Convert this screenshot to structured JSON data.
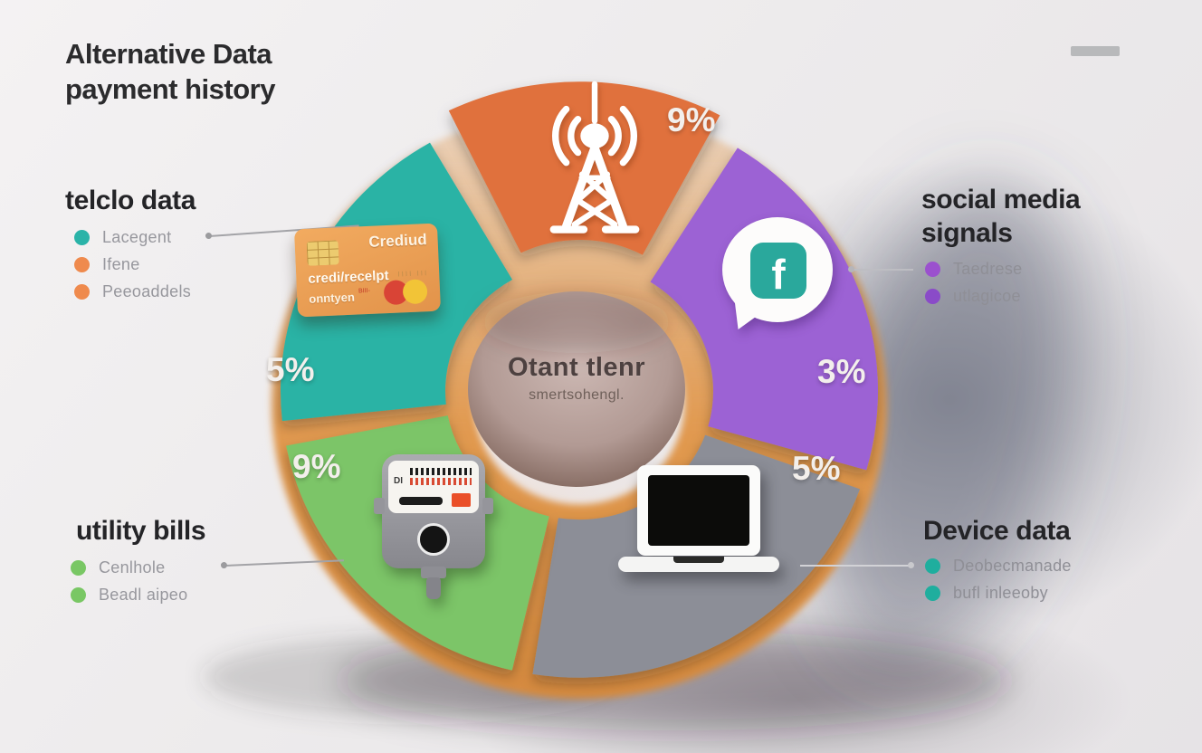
{
  "title": {
    "line1": "Alternative Data",
    "line2": "payment history"
  },
  "decoration": {
    "top_right_dash_color": "#B8B9BB"
  },
  "chart_data": {
    "type": "pie",
    "style": "3d-donut-exploded",
    "title": "Alternative Data payment history",
    "legend_position": "sides",
    "center_label": {
      "title": "Otant tlenr",
      "subtitle": "smertsohengl."
    },
    "segments": [
      {
        "name": "payment history",
        "icon": "radio-tower-icon",
        "color": "#E0713C",
        "value": 9,
        "value_label": "9%",
        "start_deg": 62,
        "end_deg": 116,
        "exploded": true
      },
      {
        "name": "social media signals",
        "icon": "facebook-icon",
        "color": "#9C62D4",
        "value": 3,
        "value_label": "3%",
        "start_deg": -16,
        "end_deg": 58,
        "exploded": false
      },
      {
        "name": "Device data",
        "icon": "laptop-icon",
        "color": "#8C8E97",
        "value": 5,
        "value_label": "5%",
        "start_deg": 261,
        "end_deg": 340,
        "exploded": false
      },
      {
        "name": "utility bills",
        "icon": "utility-meter-icon",
        "color": "#7CC568",
        "value": 9,
        "value_label": "9%",
        "start_deg": 191,
        "end_deg": 257,
        "exploded": false
      },
      {
        "name": "telclo data",
        "icon": "credit-card-icon",
        "color": "#2BB3A5",
        "value": 5,
        "value_label": "5%",
        "start_deg": 120,
        "end_deg": 186,
        "exploded": false
      }
    ]
  },
  "legend_groups": {
    "telco": {
      "heading": "telclo data",
      "items": [
        {
          "text": "Lacegent",
          "color": "#2AB3A8"
        },
        {
          "text": "Ifene",
          "color": "#EF8A4D"
        },
        {
          "text": "Peeoaddels",
          "color": "#EF8A4D"
        }
      ]
    },
    "social": {
      "heading_line1": "social media",
      "heading_line2": "signals",
      "items": [
        {
          "text": "Taedrese",
          "color": "#9B51CE"
        },
        {
          "text": "utlagicoe",
          "color": "#8A4BC8"
        }
      ]
    },
    "utility": {
      "heading": "utility bills",
      "items": [
        {
          "text": "Cenlhole",
          "color": "#79C764"
        },
        {
          "text": "Beadl aipeo",
          "color": "#79C764"
        }
      ]
    },
    "device": {
      "heading": "Device data",
      "items": [
        {
          "text": "Deobecmanade",
          "color": "#1FAE9E"
        },
        {
          "text": "bufl inleeoby",
          "color": "#1FAE9E"
        }
      ]
    }
  },
  "card": {
    "brand": "Crediud",
    "line1": "credi/recelpt",
    "line2": "onntyen",
    "number": "IIII III",
    "fineprint": "BIII-"
  },
  "meter": {
    "display_label": "DI"
  },
  "colors": {
    "background": "#ECEAEB",
    "cookie_base": "#E1994F",
    "hole_top": "#CDB9B4",
    "hole_bottom": "#6E5247",
    "facebook_teal": "#2AA89C",
    "card_orange": "#EBA158"
  }
}
